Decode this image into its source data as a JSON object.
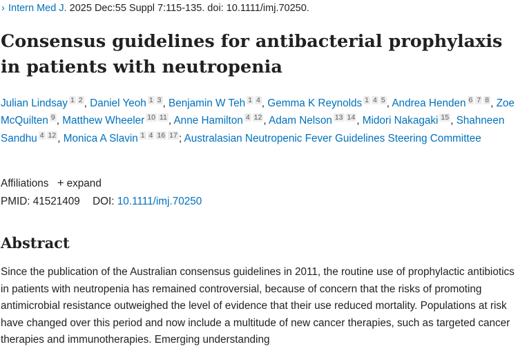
{
  "citation": {
    "chevron": "›",
    "journal": "Intern Med J.",
    "details": " 2025 Dec:55 Suppl 7:115-135. doi: 10.1111/imj.70250."
  },
  "title": "Consensus guidelines for antibacterial prophylaxis in patients with neutropenia",
  "authors": [
    {
      "name": "Julian Lindsay",
      "sups": [
        "1",
        "2"
      ]
    },
    {
      "name": "Daniel Yeoh",
      "sups": [
        "1",
        "3"
      ]
    },
    {
      "name": "Benjamin W Teh",
      "sups": [
        "1",
        "4"
      ]
    },
    {
      "name": "Gemma K Reynolds",
      "sups": [
        "1",
        "4",
        "5"
      ]
    },
    {
      "name": "Andrea Henden",
      "sups": [
        "6",
        "7",
        "8"
      ]
    },
    {
      "name": "Zoe McQuilten",
      "sups": [
        "9"
      ]
    },
    {
      "name": "Matthew Wheeler",
      "sups": [
        "10",
        "11"
      ]
    },
    {
      "name": "Anne Hamilton",
      "sups": [
        "4",
        "12"
      ]
    },
    {
      "name": "Adam Nelson",
      "sups": [
        "13",
        "14"
      ]
    },
    {
      "name": "Midori Nakagaki",
      "sups": [
        "15"
      ]
    },
    {
      "name": "Shahneen Sandhu",
      "sups": [
        "4",
        "12"
      ]
    },
    {
      "name": "Monica A Slavin",
      "sups": [
        "1",
        "4",
        "16",
        "17"
      ]
    }
  ],
  "group_author": "Australasian Neutropenic Fever Guidelines Steering Committee",
  "affiliations": {
    "label": "Affiliations",
    "plus": "+",
    "expand": "expand"
  },
  "ids": {
    "pmid_label": "PMID:",
    "pmid": "41521409",
    "doi_label": "DOI:",
    "doi": "10.1111/imj.70250"
  },
  "abstract": {
    "heading": "Abstract",
    "text": "Since the publication of the Australian consensus guidelines in 2011, the routine use of prophylactic antibiotics in patients with neutropenia has remained controversial, because of concern that the risks of promoting antimicrobial resistance outweighed the level of evidence that their use reduced mortality. Populations at risk have changed over this period and now include a multitude of new cancer therapies, such as targeted cancer therapies and immunotherapies. Emerging understanding"
  }
}
